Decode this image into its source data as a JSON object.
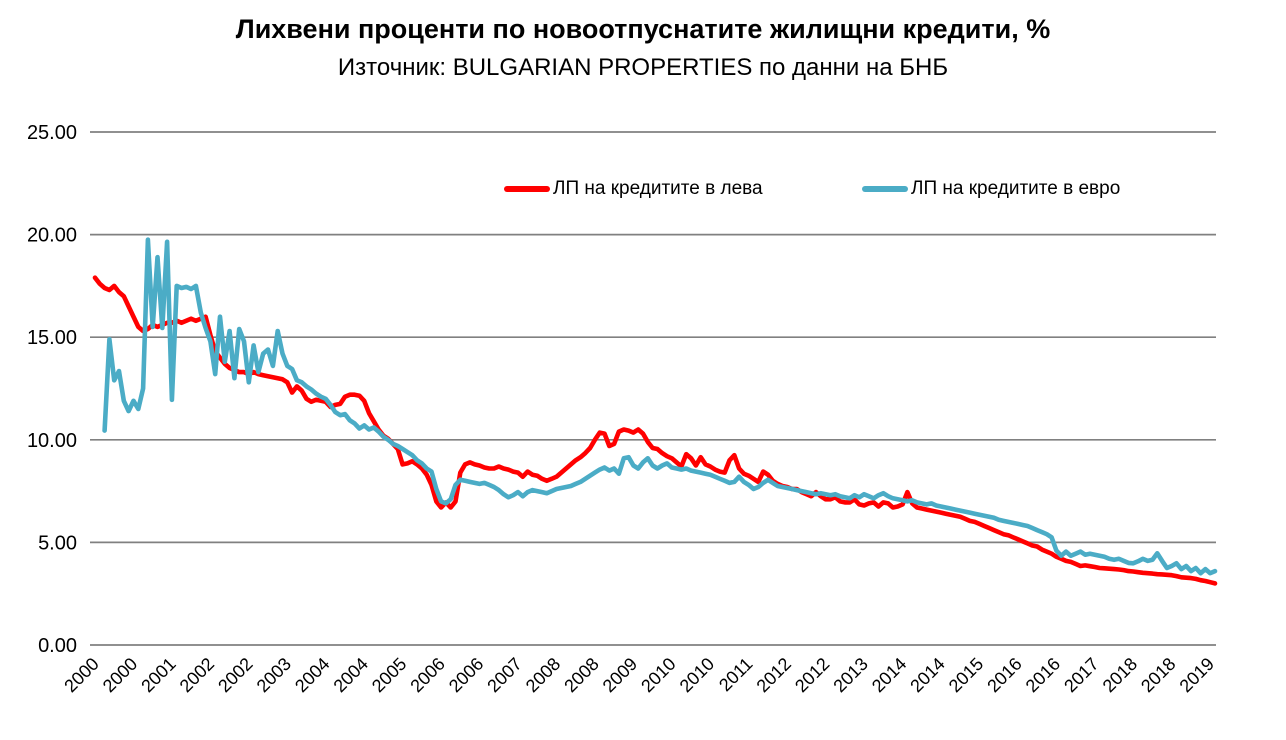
{
  "header": {
    "title": "Лихвени проценти по новоотпуснатите жилищни кредити, %",
    "subtitle": "Източник: BULGARIAN PROPERTIES по данни на БНБ"
  },
  "legend": [
    {
      "label": "ЛП на кредитите в лева",
      "color": "#FF0000"
    },
    {
      "label": "ЛП на кредитите в евро",
      "color": "#4BACC6"
    }
  ],
  "colors": {
    "leva_line": "#FF0000",
    "evro_line": "#4BACC6",
    "gridline": "#808080",
    "text": "#000000",
    "background": "#FFFFFF"
  },
  "chart_data": {
    "type": "line",
    "title": "Лихвени проценти по новоотпуснатите жилищни кредити, %",
    "subtitle": "Източник: BULGARIAN PROPERTIES по данни на БНБ",
    "ylabel": "",
    "xlabel": "",
    "ylim": [
      0,
      25
    ],
    "grid": "horizontal-only",
    "legend_position": "top-center-inside",
    "frequency": "monthly",
    "x_start": "2000-01",
    "x_end": "2019-06",
    "x_tick_every_n_months": 8,
    "x_tick_labels": [
      "2000",
      "2000",
      "2001",
      "2002",
      "2002",
      "2003",
      "2004",
      "2004",
      "2005",
      "2006",
      "2006",
      "2007",
      "2008",
      "2008",
      "2009",
      "2010",
      "2010",
      "2011",
      "2012",
      "2012",
      "2013",
      "2014",
      "2014",
      "2015",
      "2016",
      "2016",
      "2017",
      "2018",
      "2018",
      "2019"
    ],
    "y_tick_labels": [
      "0.00",
      "5.00",
      "10.00",
      "15.00",
      "20.00",
      "25.00"
    ],
    "series": [
      {
        "name": "ЛП на кредитите в лева",
        "color": "#FF0000",
        "values": [
          17.9,
          17.6,
          17.4,
          17.3,
          17.5,
          17.2,
          17.0,
          16.5,
          16.0,
          15.5,
          15.3,
          15.4,
          15.6,
          15.5,
          15.6,
          15.7,
          15.7,
          15.8,
          15.7,
          15.8,
          15.9,
          15.8,
          15.9,
          16.0,
          15.1,
          14.3,
          14.0,
          13.7,
          13.5,
          13.4,
          13.3,
          13.3,
          13.2,
          13.3,
          13.2,
          13.15,
          13.1,
          13.05,
          13.0,
          12.95,
          12.8,
          12.3,
          12.6,
          12.4,
          12.0,
          11.85,
          11.95,
          11.9,
          11.85,
          11.6,
          11.7,
          11.75,
          12.1,
          12.2,
          12.2,
          12.15,
          11.9,
          11.3,
          10.9,
          10.5,
          10.2,
          10.05,
          9.8,
          9.55,
          8.8,
          8.85,
          8.95,
          8.8,
          8.6,
          8.3,
          7.8,
          7.0,
          6.7,
          6.95,
          6.7,
          7.0,
          8.4,
          8.8,
          8.9,
          8.8,
          8.75,
          8.65,
          8.6,
          8.6,
          8.7,
          8.6,
          8.55,
          8.45,
          8.4,
          8.2,
          8.45,
          8.3,
          8.25,
          8.1,
          8.0,
          8.1,
          8.2,
          8.4,
          8.6,
          8.8,
          9.0,
          9.15,
          9.35,
          9.6,
          10.0,
          10.35,
          10.3,
          9.7,
          9.8,
          10.4,
          10.5,
          10.45,
          10.35,
          10.5,
          10.3,
          9.9,
          9.6,
          9.55,
          9.35,
          9.2,
          9.1,
          8.9,
          8.7,
          9.3,
          9.1,
          8.75,
          9.15,
          8.8,
          8.7,
          8.55,
          8.45,
          8.4,
          9.0,
          9.25,
          8.6,
          8.35,
          8.25,
          8.1,
          7.95,
          8.45,
          8.3,
          8.0,
          7.85,
          7.75,
          7.7,
          7.6,
          7.6,
          7.45,
          7.35,
          7.25,
          7.45,
          7.25,
          7.1,
          7.1,
          7.2,
          7.0,
          6.95,
          6.95,
          7.1,
          6.85,
          6.8,
          6.9,
          6.95,
          6.75,
          6.95,
          6.9,
          6.7,
          6.75,
          6.85,
          7.45,
          6.9,
          6.7,
          6.65,
          6.6,
          6.55,
          6.5,
          6.45,
          6.4,
          6.35,
          6.3,
          6.25,
          6.15,
          6.05,
          6.0,
          5.9,
          5.8,
          5.7,
          5.6,
          5.5,
          5.4,
          5.35,
          5.25,
          5.15,
          5.05,
          4.95,
          4.85,
          4.8,
          4.65,
          4.55,
          4.45,
          4.3,
          4.2,
          4.1,
          4.05,
          3.95,
          3.85,
          3.88,
          3.84,
          3.8,
          3.75,
          3.74,
          3.72,
          3.7,
          3.68,
          3.65,
          3.6,
          3.58,
          3.55,
          3.52,
          3.5,
          3.48,
          3.45,
          3.44,
          3.42,
          3.4,
          3.36,
          3.3,
          3.28,
          3.26,
          3.22,
          3.16,
          3.12,
          3.06,
          3.0
        ]
      },
      {
        "name": "ЛП на кредитите в евро",
        "color": "#4BACC6",
        "values": [
          null,
          null,
          10.45,
          14.9,
          12.9,
          13.35,
          11.9,
          11.4,
          11.9,
          11.5,
          12.5,
          19.75,
          15.5,
          18.9,
          15.45,
          19.65,
          11.95,
          17.5,
          17.4,
          17.45,
          17.35,
          17.5,
          16.2,
          15.45,
          14.8,
          13.2,
          16.0,
          13.8,
          15.3,
          13.0,
          15.4,
          14.8,
          12.8,
          14.6,
          13.3,
          14.2,
          14.4,
          13.6,
          15.3,
          14.2,
          13.6,
          13.45,
          12.9,
          12.8,
          12.6,
          12.45,
          12.25,
          12.1,
          12.0,
          11.7,
          11.35,
          11.2,
          11.25,
          10.95,
          10.8,
          10.55,
          10.7,
          10.5,
          10.6,
          10.4,
          10.15,
          10.0,
          9.8,
          9.7,
          9.55,
          9.4,
          9.25,
          9.0,
          8.85,
          8.6,
          8.45,
          7.6,
          7.0,
          6.9,
          7.1,
          7.8,
          8.05,
          8.0,
          7.95,
          7.9,
          7.85,
          7.9,
          7.8,
          7.7,
          7.55,
          7.35,
          7.2,
          7.3,
          7.45,
          7.25,
          7.45,
          7.55,
          7.5,
          7.45,
          7.4,
          7.5,
          7.6,
          7.65,
          7.7,
          7.75,
          7.85,
          7.95,
          8.1,
          8.25,
          8.4,
          8.55,
          8.65,
          8.5,
          8.6,
          8.35,
          9.1,
          9.15,
          8.75,
          8.6,
          8.9,
          9.1,
          8.75,
          8.6,
          8.75,
          8.85,
          8.65,
          8.6,
          8.55,
          8.6,
          8.5,
          8.45,
          8.4,
          8.35,
          8.3,
          8.2,
          8.1,
          8.0,
          7.9,
          7.95,
          8.2,
          7.95,
          7.8,
          7.6,
          7.7,
          7.9,
          8.05,
          7.9,
          7.75,
          7.7,
          7.65,
          7.6,
          7.55,
          7.5,
          7.45,
          7.4,
          7.35,
          7.4,
          7.35,
          7.3,
          7.35,
          7.25,
          7.2,
          7.15,
          7.3,
          7.2,
          7.35,
          7.25,
          7.15,
          7.3,
          7.4,
          7.25,
          7.15,
          7.1,
          7.05,
          7.0,
          7.05,
          6.95,
          6.9,
          6.85,
          6.9,
          6.8,
          6.75,
          6.7,
          6.65,
          6.6,
          6.55,
          6.5,
          6.45,
          6.4,
          6.35,
          6.3,
          6.25,
          6.2,
          6.1,
          6.05,
          6.0,
          5.95,
          5.9,
          5.85,
          5.8,
          5.7,
          5.6,
          5.5,
          5.4,
          5.25,
          4.6,
          4.35,
          4.55,
          4.35,
          4.45,
          4.55,
          4.4,
          4.45,
          4.4,
          4.35,
          4.3,
          4.2,
          4.15,
          4.2,
          4.1,
          4.0,
          3.98,
          4.08,
          4.2,
          4.1,
          4.15,
          4.47,
          4.1,
          3.75,
          3.85,
          3.98,
          3.7,
          3.85,
          3.6,
          3.75,
          3.5,
          3.7,
          3.5,
          3.6
        ]
      }
    ]
  }
}
